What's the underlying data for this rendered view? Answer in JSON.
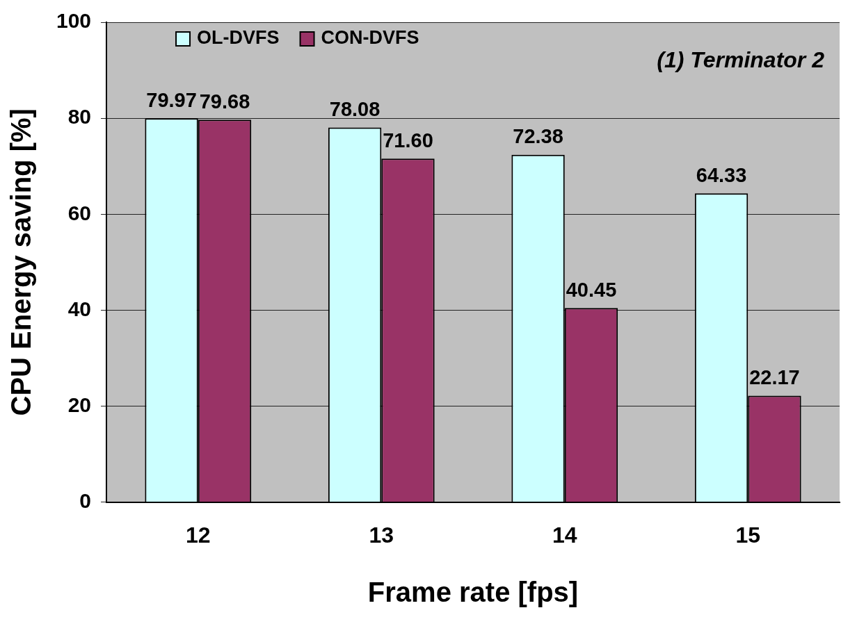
{
  "chart_data": {
    "type": "bar",
    "xlabel": "Frame rate [fps]",
    "ylabel": "CPU Energy saving [%]",
    "categories": [
      "12",
      "13",
      "14",
      "15"
    ],
    "series": [
      {
        "name": "OL-DVFS",
        "color": "#ccffff",
        "values": [
          79.97,
          78.08,
          72.38,
          64.33
        ],
        "value_labels": [
          "79.97",
          "78.08",
          "72.38",
          "64.33"
        ]
      },
      {
        "name": "CON-DVFS",
        "color": "#993366",
        "values": [
          79.68,
          71.6,
          40.45,
          22.17
        ],
        "value_labels": [
          "79.68",
          "71.60",
          "40.45",
          "22.17"
        ]
      }
    ],
    "ylim": [
      0,
      100
    ],
    "yticks": [
      0,
      20,
      40,
      60,
      80,
      100
    ],
    "grid": "y",
    "legend": "top",
    "annotations": [
      "(1) Terminator 2"
    ]
  }
}
